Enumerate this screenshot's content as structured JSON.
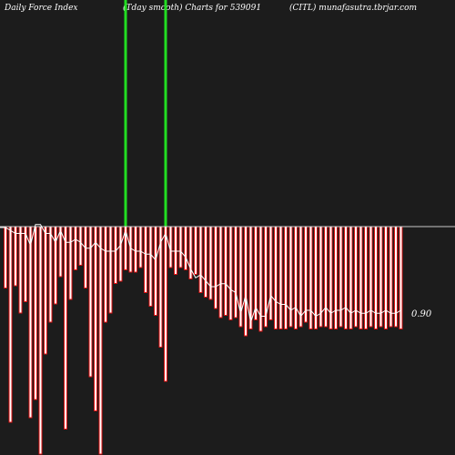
{
  "header": {
    "left": "Daily Force  Index",
    "center": "(Tday smooth) Charts for 539091",
    "right": "(CITL) munafasutra.tbrjar.com"
  },
  "value_label": "0.90",
  "colors": {
    "background": "#1c1c1c",
    "bar_fill": "#ffffff",
    "bar_outline": "#e01010",
    "line": "#ffffff",
    "zero_line": "#c8c8c8",
    "marker": "#22dd22"
  },
  "chart_data": {
    "type": "bar",
    "title": "Daily Force Index (Tday smooth) Charts for 539091 (CITL)",
    "bars_depth": [
      27,
      86,
      26,
      38,
      33,
      84,
      76,
      100,
      56,
      42,
      34,
      22,
      89,
      32,
      19,
      17,
      27,
      66,
      81,
      100,
      42,
      38,
      25,
      24,
      19,
      20,
      20,
      18,
      29,
      35,
      39,
      53,
      68,
      18,
      21,
      18,
      19,
      23,
      21,
      29,
      31,
      32,
      36,
      40,
      39,
      41,
      40,
      44,
      48,
      45,
      41,
      46,
      44,
      41,
      45,
      45,
      45,
      44,
      45,
      44,
      42,
      45,
      45,
      44,
      44,
      45,
      45,
      44,
      45,
      45,
      44,
      45,
      45,
      44,
      45,
      44,
      45,
      44,
      44,
      45
    ],
    "bars_up": [
      0,
      0,
      0,
      0,
      0,
      0,
      0,
      0,
      0,
      0,
      0,
      0,
      0,
      0,
      0,
      0,
      0,
      0,
      0,
      0,
      0,
      0,
      0,
      0,
      100,
      0,
      0,
      0,
      0,
      0,
      0,
      0,
      100,
      0,
      0,
      0,
      0,
      0,
      0,
      0,
      0,
      0,
      0,
      0,
      0,
      0,
      0,
      0,
      0,
      0,
      0,
      0,
      0,
      0,
      0,
      0,
      0,
      0,
      0,
      0,
      0,
      0,
      0,
      0,
      0,
      0,
      0,
      0,
      0,
      0,
      0,
      0,
      0,
      0,
      0,
      0,
      0,
      0,
      0,
      0
    ],
    "line_values": [
      0,
      1,
      2,
      2,
      2,
      6,
      -1,
      -1,
      2,
      2,
      5,
      1,
      5,
      5,
      4,
      5,
      7,
      7,
      5,
      7,
      8,
      8,
      8,
      6,
      1,
      7,
      8,
      8,
      9,
      9,
      11,
      5,
      2,
      8,
      8,
      8,
      10,
      14,
      17,
      16,
      18,
      20,
      20,
      19,
      19,
      21,
      22,
      29,
      23,
      32,
      27,
      30,
      30,
      23,
      25,
      26,
      26,
      28,
      27,
      30,
      28,
      28,
      30,
      29,
      27,
      29,
      28,
      28,
      27,
      29,
      28,
      29,
      29,
      28,
      29,
      29,
      28,
      29,
      29,
      28
    ],
    "last_value": 0.9,
    "markers": [
      24,
      32
    ]
  }
}
